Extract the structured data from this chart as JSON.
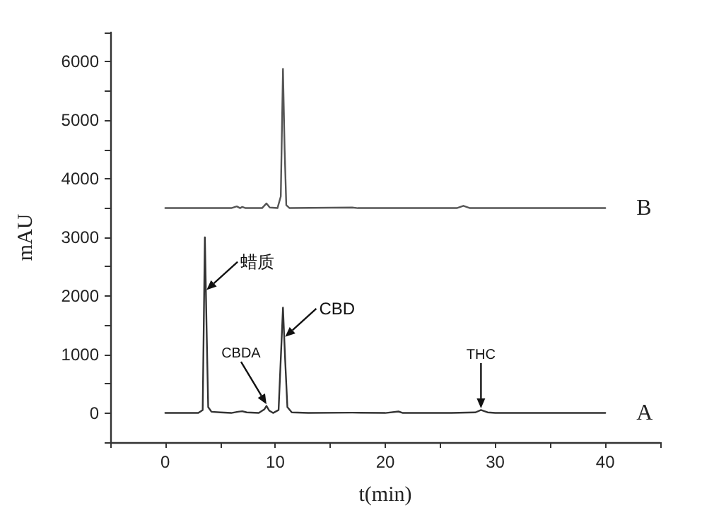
{
  "chart_data": {
    "type": "line",
    "xlabel": "t(min)",
    "ylabel": "mAU",
    "xlim": [
      -5,
      45
    ],
    "xticks": [
      {
        "value": -5,
        "label": null
      },
      0,
      {
        "value": 5,
        "label": null
      },
      10,
      {
        "value": 15,
        "label": null
      },
      20,
      {
        "value": 25,
        "label": null
      },
      30,
      {
        "value": 35,
        "label": null
      },
      40,
      {
        "value": 45,
        "label": null
      }
    ],
    "ylim": [
      -500,
      6500
    ],
    "yticks": [
      {
        "value": -500,
        "label": null
      },
      0,
      {
        "value": 500,
        "label": null
      },
      1000,
      {
        "value": 1500,
        "label": null
      },
      2000,
      {
        "value": 2500,
        "label": null
      },
      3000,
      {
        "value": 3500,
        "label": null
      },
      4000,
      {
        "value": 4500,
        "label": null
      },
      5000,
      {
        "value": 5500,
        "label": null
      },
      6000,
      {
        "value": 6500,
        "label": null
      }
    ],
    "grid": false,
    "legend": false,
    "marker": "none",
    "line_style": "solid",
    "series": [
      {
        "name": "A",
        "color": "#333333",
        "x": [
          0,
          3.0,
          3.4,
          3.6,
          3.75,
          3.9,
          4.2,
          5,
          6,
          6.6,
          7,
          7.4,
          8.5,
          9.0,
          9.2,
          9.45,
          9.8,
          10.3,
          10.7,
          10.9,
          11.1,
          11.5,
          13,
          17,
          20,
          21.2,
          21.6,
          26,
          28.2,
          28.7,
          29.3,
          30,
          40
        ],
        "values": [
          0,
          0,
          50,
          3000,
          1500,
          100,
          20,
          10,
          0,
          20,
          30,
          10,
          0,
          60,
          120,
          40,
          0,
          50,
          1800,
          900,
          100,
          10,
          0,
          5,
          0,
          25,
          0,
          0,
          10,
          50,
          10,
          0,
          0
        ]
      },
      {
        "name": "B",
        "color": "#555555",
        "x": [
          0,
          6,
          6.5,
          6.8,
          7.0,
          7.3,
          8.8,
          9.2,
          9.5,
          10.2,
          10.5,
          10.7,
          10.85,
          11.0,
          11.3,
          17,
          17.5,
          26.5,
          27.1,
          27.7,
          40
        ],
        "values": [
          3500,
          3500,
          3530,
          3500,
          3520,
          3500,
          3500,
          3580,
          3510,
          3500,
          3700,
          5880,
          4500,
          3550,
          3500,
          3510,
          3500,
          3500,
          3540,
          3500,
          3500
        ]
      }
    ],
    "annotations": [
      {
        "text": "蜡质",
        "x": 3.75,
        "y": 2100
      },
      {
        "text": "CBDA",
        "x": 9.2,
        "y": 150
      },
      {
        "text": "CBD",
        "x": 10.9,
        "y": 1300
      },
      {
        "text": "THC",
        "x": 28.7,
        "y": 80
      }
    ]
  }
}
